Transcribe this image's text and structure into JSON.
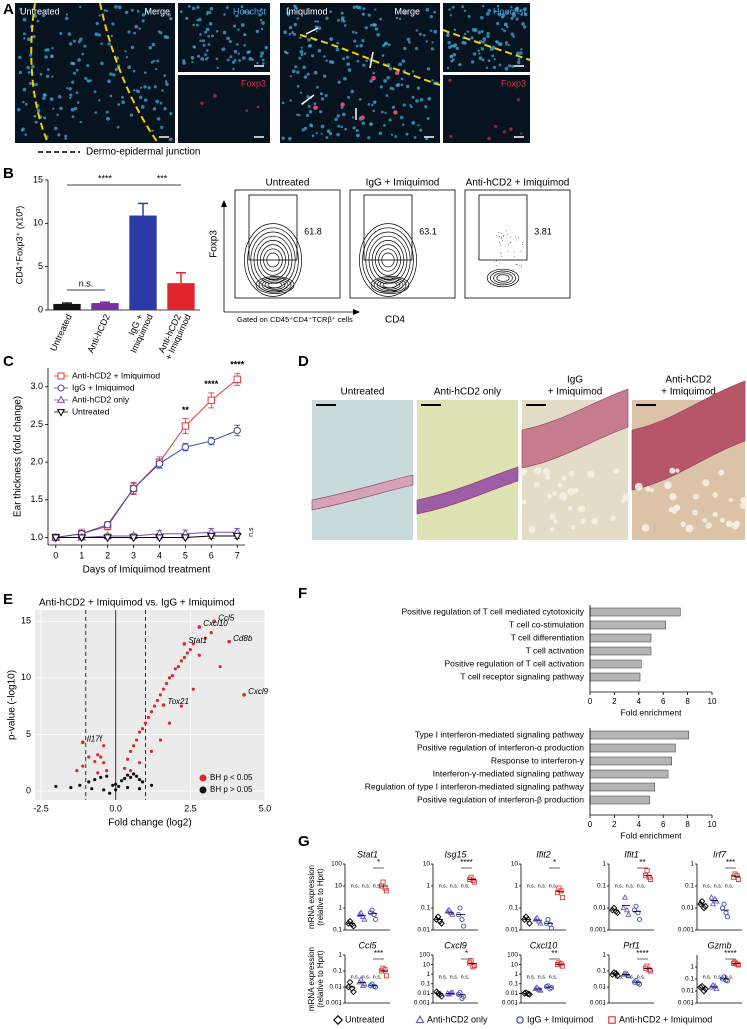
{
  "figure": {
    "letters": [
      "A",
      "B",
      "C",
      "D",
      "E",
      "F",
      "G"
    ],
    "panel_a": {
      "untreated": "Untreated",
      "imiquimod": "Imiquimod",
      "merge": "Merge",
      "hoechst": "Hoechst",
      "foxp3": "Foxp3",
      "junction": "Dermo-epidermal junction"
    },
    "panel_b_flow": {
      "titles": [
        "Untreated",
        "IgG + Imiquimod",
        "Anti-hCD2 + Imiquimod"
      ],
      "gates": [
        61.8,
        63.1,
        3.81
      ],
      "y_axis": "Foxp3",
      "x_axis": "CD4",
      "gating": "Gated on CD45⁺CD4⁺TCRβ⁺ cells"
    },
    "panel_d": {
      "labels": [
        [
          "Untreated"
        ],
        [
          "Anti-hCD2 only"
        ],
        [
          "IgG",
          "+ Imiquimod"
        ],
        [
          "Anti-hCD2",
          "+ Imiquimod"
        ]
      ]
    }
  },
  "chart_data": [
    {
      "type": "bar",
      "y_label": "CD4⁺Foxp3⁺ (x10³)",
      "categories": [
        [
          "Untreated"
        ],
        [
          "Anti-hCD2"
        ],
        [
          "IgG +",
          "Imiquimod"
        ],
        [
          "Anti-hCD2",
          "+ Imiquimod"
        ]
      ],
      "values": [
        0.7,
        0.8,
        10.9,
        3.1
      ],
      "errors": [
        0.1,
        0.1,
        1.4,
        1.2
      ],
      "colors": [
        "#111111",
        "#7b2f9e",
        "#2b3aa6",
        "#e3262e"
      ],
      "ylim": [
        0,
        15
      ],
      "yticks": [
        0,
        5,
        10,
        15
      ],
      "annotations": [
        "n.s.",
        "****",
        "***"
      ]
    },
    {
      "type": "line",
      "x_label": "Days of Imiquimod treatment",
      "y_label": "Ear thickness (fold change)",
      "x": [
        0,
        1,
        2,
        3,
        4,
        5,
        6,
        7
      ],
      "xlim": [
        -0.3,
        7.3
      ],
      "xticks": [
        0,
        1,
        2,
        3,
        4,
        5,
        6,
        7
      ],
      "ylim": [
        0.9,
        3.25
      ],
      "yticks": [
        {
          "value": 1,
          "label": "1.0"
        },
        1.5,
        {
          "value": 2,
          "label": "2.0"
        },
        2.5,
        {
          "value": 3,
          "label": "3.0"
        }
      ],
      "series": [
        {
          "name": "Anti-hCD2 + Imiquimod",
          "color": "#e0393e",
          "marker": "square",
          "values": [
            1.0,
            1.05,
            1.15,
            1.65,
            2.0,
            2.48,
            2.82,
            3.1
          ],
          "errors": [
            0,
            0.06,
            0.05,
            0.08,
            0.07,
            0.1,
            0.1,
            0.08
          ]
        },
        {
          "name": "IgG + Imiquimod",
          "color": "#3a4bb5",
          "marker": "circle",
          "values": [
            1.0,
            1.05,
            1.17,
            1.65,
            1.98,
            2.2,
            2.28,
            2.42
          ],
          "errors": [
            0,
            0.04,
            0.04,
            0.07,
            0.06,
            0.05,
            0.05,
            0.07
          ]
        },
        {
          "name": "Anti-hCD2 only",
          "color": "#7a4fb0",
          "marker": "triangle",
          "values": [
            1.0,
            1.0,
            1.02,
            1.02,
            1.05,
            1.05,
            1.07,
            1.07
          ],
          "errors": [
            0,
            0.03,
            0.03,
            0.03,
            0.04,
            0.05,
            0.05,
            0.05
          ]
        },
        {
          "name": "Untreated",
          "color": "#000000",
          "marker": "triangle-down",
          "values": [
            1.0,
            1.0,
            1.0,
            1.0,
            1.0,
            1.0,
            1.02,
            1.02
          ],
          "errors": [
            0,
            0.02,
            0.02,
            0.02,
            0.02,
            0.02,
            0.03,
            0.03
          ]
        }
      ],
      "annotations": [
        "**",
        "****",
        "****",
        "n.s"
      ]
    },
    {
      "type": "scatter",
      "title": "Anti-hCD2 + Imiquimod vs. IgG + Imiquimod",
      "x_label": "Fold change (log2)",
      "y_label": "p-value (-log10)",
      "xlim": [
        -2.7,
        5.0
      ],
      "xticks": [
        -2.5,
        {
          "value": 0,
          "label": "0.0"
        },
        2.5,
        {
          "value": 5,
          "label": "5.0"
        }
      ],
      "ylim": [
        -0.8,
        16
      ],
      "yticks": [
        0,
        5,
        10,
        15
      ],
      "thresholds": [
        -1,
        1
      ],
      "background": "#ebebeb",
      "series": [
        {
          "name": "BH p < 0.05",
          "color": "#e0262d",
          "x": [
            0.3,
            0.4,
            0.5,
            0.6,
            0.7,
            0.8,
            0.9,
            1.0,
            1.1,
            1.2,
            1.3,
            1.4,
            1.5,
            1.6,
            1.7,
            1.8,
            1.9,
            2.0,
            2.1,
            2.2,
            2.3,
            2.4,
            2.5,
            2.6,
            2.8,
            3.0,
            3.2,
            3.5,
            0.5,
            0.8,
            1.2,
            1.5,
            1.8,
            2.2,
            2.6,
            -0.3,
            -0.4,
            -0.5,
            -0.6,
            -0.7,
            -0.9,
            -1.1,
            -0.4,
            -0.6,
            -1.3
          ],
          "y": [
            2.0,
            2.8,
            3.5,
            4.0,
            4.5,
            5.2,
            5.5,
            6.0,
            6.5,
            7.0,
            7.5,
            8.0,
            8.5,
            9.0,
            9.5,
            10.0,
            10.2,
            10.8,
            11.0,
            11.5,
            11.8,
            12.2,
            12.5,
            13.0,
            12.0,
            13.5,
            14.0,
            11.0,
            1.8,
            2.5,
            3.5,
            4.5,
            6.0,
            7.5,
            9.0,
            1.8,
            2.5,
            3.0,
            3.2,
            2.6,
            3.0,
            2.2,
            4.0,
            1.6,
            1.8
          ]
        },
        {
          "name": "BH p > 0.05",
          "color": "#111111",
          "x": [
            -1.5,
            -1.2,
            -0.9,
            -0.7,
            -0.5,
            -0.3,
            -0.1,
            0.0,
            0.1,
            0.2,
            0.3,
            0.4,
            0.5,
            0.6,
            0.7,
            0.8,
            0.9,
            -0.8,
            -0.4,
            0.0,
            0.4,
            0.8,
            -2.0,
            1.2,
            -0.2
          ],
          "y": [
            0.3,
            0.5,
            0.8,
            1.0,
            1.2,
            1.3,
            0.5,
            0.1,
            0.4,
            0.9,
            1.1,
            1.4,
            1.2,
            1.5,
            1.3,
            1.0,
            0.8,
            0.2,
            0.1,
            0.6,
            0.3,
            0.2,
            0.4,
            0.5,
            -0.2
          ]
        }
      ],
      "genes": [
        {
          "name": "Ccl5",
          "x": 3.3,
          "y": 15.0
        },
        {
          "name": "Cxcl10",
          "x": 2.8,
          "y": 14.5
        },
        {
          "name": "Cd8b",
          "x": 3.8,
          "y": 13.2
        },
        {
          "name": "Stat1",
          "x": 2.3,
          "y": 13.0
        },
        {
          "name": "Tox21",
          "x": 1.6,
          "y": 7.6
        },
        {
          "name": "Cxcl9",
          "x": 4.3,
          "y": 8.5
        },
        {
          "name": "Il17f",
          "x": -1.1,
          "y": 4.3
        }
      ]
    },
    {
      "type": "barh",
      "x_label": "Fold enrichment",
      "color": "#b4b4b4",
      "xlim": [
        0,
        10
      ],
      "xticks": [
        0,
        2,
        4,
        6,
        8,
        10
      ],
      "categories": [
        "Positive regulation of T cell mediated cytotoxicity",
        "T cell co-stimulation",
        "T cell differentiation",
        "T cell activation",
        "Positive regulation of T cell activation",
        "T cell receptor signaling pathway"
      ],
      "values": [
        7.4,
        6.2,
        5.0,
        5.0,
        4.2,
        4.1
      ]
    },
    {
      "type": "barh",
      "x_label": "Fold enrichment",
      "color": "#b4b4b4",
      "xlim": [
        0,
        10
      ],
      "xticks": [
        0,
        2,
        4,
        6,
        8,
        10
      ],
      "categories": [
        "Type I interferon-mediated signaling pathway",
        "Positive regulation of interferon-α production",
        "Response to interferon-γ",
        "Interferon-γ-mediated signaling pathway",
        "Regulation of type I interferon-mediated signaling pathway",
        "Positive regulation of interferon-β production"
      ],
      "values": [
        8.1,
        7.0,
        6.7,
        6.4,
        5.3,
        4.9
      ]
    },
    {
      "type": "dot",
      "y_label": [
        "mRNA expression",
        "(relative to Hprt)"
      ],
      "log_y": true,
      "groups": [
        {
          "name": "Untreated",
          "color": "#000000",
          "marker": "diamond"
        },
        {
          "name": "Anti-hCD2 only",
          "color": "#6a5acd",
          "marker": "triangle"
        },
        {
          "name": "IgG + Imiquimod",
          "color": "#3a4bb5",
          "marker": "circle"
        },
        {
          "name": "Anti-hCD2 + Imiquimod",
          "color": "#e0393e",
          "marker": "square"
        }
      ],
      "plots": [
        {
          "title": "Stat1",
          "ylim": [
            0.1,
            100
          ],
          "yticks": [
            0.1,
            1,
            10,
            100
          ],
          "values": [
            [
              0.2,
              0.15,
              0.25,
              0.18
            ],
            [
              0.5,
              0.3,
              0.6,
              0.4
            ],
            [
              0.6,
              0.3,
              0.8,
              0.5
            ],
            [
              10,
              6,
              15,
              8
            ]
          ],
          "means": [
            0.2,
            0.45,
            0.55,
            10
          ],
          "annotations": [
            "n.s.",
            "n.s.",
            "n.s.",
            "*"
          ]
        },
        {
          "title": "Isg15",
          "ylim": [
            0.01,
            10
          ],
          "yticks": [
            0.01,
            0.1,
            1,
            10
          ],
          "values": [
            [
              0.03,
              0.02,
              0.04,
              0.025
            ],
            [
              0.07,
              0.05,
              0.08,
              0.06
            ],
            [
              0.05,
              0.015,
              0.1,
              0.03
            ],
            [
              2,
              1.5,
              2.5,
              1.8
            ]
          ],
          "means": [
            0.03,
            0.06,
            0.05,
            2
          ],
          "annotations": [
            "n.s.",
            "n.s.",
            "n.s.",
            "****"
          ]
        },
        {
          "title": "Ifit2",
          "ylim": [
            0.01,
            10
          ],
          "yticks": [
            0.01,
            0.1,
            1,
            10
          ],
          "values": [
            [
              0.03,
              0.02,
              0.04,
              0.03
            ],
            [
              0.03,
              0.02,
              0.035,
              0.025
            ],
            [
              0.02,
              0.012,
              0.03,
              0.018
            ],
            [
              0.5,
              0.3,
              0.8,
              0.6
            ]
          ],
          "means": [
            0.03,
            0.028,
            0.02,
            0.55
          ],
          "annotations": [
            "n.s.",
            "n.s.",
            "n.s.",
            "*"
          ]
        },
        {
          "title": "Ifit1",
          "ylim": [
            0.001,
            1
          ],
          "yticks": [
            0.001,
            0.01,
            0.1,
            1
          ],
          "values": [
            [
              0.008,
              0.006,
              0.01,
              0.007
            ],
            [
              0.01,
              0.005,
              0.03,
              0.008
            ],
            [
              0.008,
              0.003,
              0.012,
              0.006
            ],
            [
              0.3,
              0.2,
              0.5,
              0.25
            ]
          ],
          "means": [
            0.008,
            0.013,
            0.007,
            0.3
          ],
          "annotations": [
            "n.s.",
            "n.s.",
            "n.s.",
            "**"
          ]
        },
        {
          "title": "Irf7",
          "ylim": [
            0.001,
            1
          ],
          "yticks": [
            0.001,
            0.01,
            0.1,
            1
          ],
          "values": [
            [
              0.015,
              0.012,
              0.02,
              0.01
            ],
            [
              0.03,
              0.02,
              0.015,
              0.025
            ],
            [
              0.01,
              0.004,
              0.015,
              0.006
            ],
            [
              0.25,
              0.2,
              0.35,
              0.3
            ]
          ],
          "means": [
            0.015,
            0.022,
            0.008,
            0.28
          ],
          "annotations": [
            "n.s.",
            "n.s.",
            "n.s.",
            "***"
          ]
        },
        {
          "title": "Ccl5",
          "ylim": [
            0.001,
            1
          ],
          "yticks": [
            0.001,
            0.01,
            0.1,
            1
          ],
          "values": [
            [
              0.01,
              0.005,
              0.02,
              0.008
            ],
            [
              0.02,
              0.015,
              0.03,
              0.012
            ],
            [
              0.012,
              0.01,
              0.015,
              0.011
            ],
            [
              0.1,
              0.05,
              0.15,
              0.12
            ]
          ],
          "means": [
            0.01,
            0.019,
            0.012,
            0.1
          ],
          "annotations": [
            "n.s.",
            "n.s.",
            "n.s.",
            "***"
          ]
        },
        {
          "title": "Cxcl9",
          "ylim": [
            0.001,
            100
          ],
          "yticks": [
            0.001,
            0.01,
            0.1,
            1,
            10,
            100
          ],
          "values": [
            [
              0.015,
              0.005,
              0.01,
              0.008
            ],
            [
              0.01,
              0.012,
              0.008,
              0.011
            ],
            [
              0.008,
              0.005,
              0.012,
              0.003
            ],
            [
              15,
              8,
              25,
              6
            ]
          ],
          "means": [
            0.01,
            0.01,
            0.007,
            13
          ],
          "annotations": [
            "n.s.",
            "n.s.",
            "n.s.",
            "*"
          ]
        },
        {
          "title": "Cxcl10",
          "ylim": [
            0.001,
            100
          ],
          "yticks": [
            0.001,
            0.01,
            0.1,
            1,
            10,
            100
          ],
          "values": [
            [
              0.01,
              0.008,
              0.012,
              0.009
            ],
            [
              0.03,
              0.02,
              0.04,
              0.025
            ],
            [
              0.05,
              0.04,
              0.06,
              0.03
            ],
            [
              10,
              7,
              15,
              12
            ]
          ],
          "means": [
            0.01,
            0.029,
            0.045,
            11
          ],
          "annotations": [
            "n.s.",
            "n.s.",
            "n.s.",
            "**"
          ]
        },
        {
          "title": "Prf1",
          "ylim": [
            0.001,
            1
          ],
          "yticks": [
            0.001,
            0.01,
            0.1,
            1
          ],
          "values": [
            [
              0.06,
              0.05,
              0.08,
              0.07
            ],
            [
              0.06,
              0.05,
              0.07,
              0.065
            ],
            [
              0.02,
              0.015,
              0.025,
              0.018
            ],
            [
              0.15,
              0.1,
              0.2,
              0.12
            ]
          ],
          "means": [
            0.065,
            0.06,
            0.02,
            0.14
          ],
          "annotations": [
            "n.s.",
            "n.s.",
            "n.s.",
            "****"
          ]
        },
        {
          "title": "Gzmb",
          "ylim": [
            0.001,
            10
          ],
          "yticks": [
            0.001,
            0.01,
            0.1,
            1
          ],
          "values": [
            [
              0.02,
              0.015,
              0.025,
              0.01
            ],
            [
              0.02,
              0.015,
              0.03,
              0.025
            ],
            [
              0.1,
              0.07,
              0.15,
              0.08
            ],
            [
              2,
              1.5,
              2.5,
              1.8
            ]
          ],
          "means": [
            0.018,
            0.022,
            0.1,
            1.9
          ],
          "annotations": [
            "n.s.",
            "n.s.",
            "n.s.",
            "****"
          ]
        }
      ]
    }
  ]
}
